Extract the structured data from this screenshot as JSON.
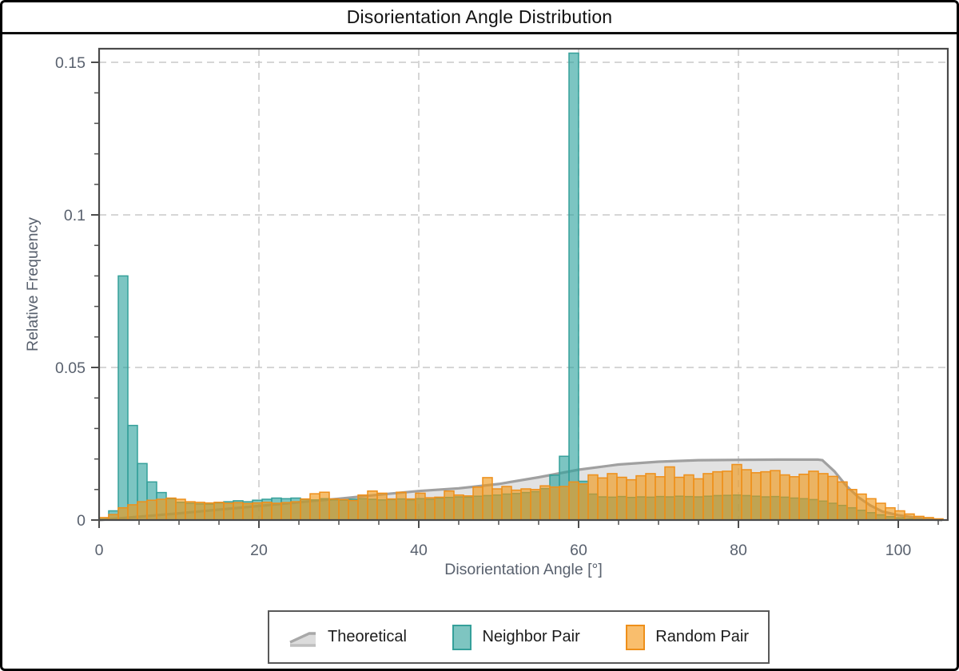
{
  "window": {
    "title": "Disorientation Angle Distribution"
  },
  "axes": {
    "x": {
      "label": "Disorientation Angle [°]",
      "ticks": [
        0,
        20,
        40,
        60,
        80,
        100
      ],
      "minor_step": 5,
      "minor_max": 105,
      "range": [
        0,
        106.2
      ],
      "grid": [
        20,
        40,
        60,
        80,
        100
      ]
    },
    "y": {
      "label": "Relative Frequency",
      "ticks": [
        0,
        0.05,
        0.1,
        0.15
      ],
      "tick_labels": [
        "0",
        "0.05",
        "0.1",
        "0.15"
      ],
      "minor_step": 0.01,
      "range": [
        0,
        0.1545
      ],
      "grid": [
        0.05,
        0.1,
        0.15
      ]
    }
  },
  "legend": {
    "items": [
      {
        "label": "Theoretical",
        "swatch": "area",
        "fill": "#d9d9d9",
        "stroke": "#a3a3a3"
      },
      {
        "label": "Neighbor Pair",
        "swatch": "bar",
        "fill": "#7ec5c1",
        "stroke": "#35a09a"
      },
      {
        "label": "Random Pair",
        "swatch": "bar",
        "fill": "#f9be6d",
        "stroke": "#ee8f1a"
      }
    ]
  },
  "colors": {
    "teal_fill": "rgba(44,161,156,0.62)",
    "teal_stroke": "#35a09a",
    "orange_fill": "rgba(240,150,20,0.62)",
    "orange_stroke": "#ee8f1a",
    "theoretical_fill": "rgba(190,190,190,0.45)",
    "theoretical_stroke": "#a0a0a0",
    "grid": "#c8c8c8",
    "frame": "#4a4a4a",
    "tick": "#4d4d4d",
    "tick_text": "#59616e"
  },
  "chart_data": {
    "type": "bar",
    "title": "Disorientation Angle Distribution",
    "xlabel": "Disorientation Angle [°]",
    "ylabel": "Relative Frequency",
    "xlim": [
      0,
      106.2
    ],
    "ylim": [
      0,
      0.1545
    ],
    "grid": "dashed, at x=20..100 step 20 and y=0.05/0.10/0.15",
    "legend_position": "bottom-center, boxed",
    "bin_width": 1.2,
    "bin_start": 0,
    "series": [
      {
        "name": "Neighbor Pair",
        "values": [
          0.0003,
          0.003,
          0.08,
          0.031,
          0.0185,
          0.0125,
          0.009,
          0.007,
          0.0058,
          0.0055,
          0.0053,
          0.0052,
          0.0056,
          0.006,
          0.0063,
          0.006,
          0.0065,
          0.0068,
          0.0072,
          0.007,
          0.0072,
          0.0068,
          0.0066,
          0.007,
          0.0066,
          0.0065,
          0.0068,
          0.007,
          0.0068,
          0.0066,
          0.0067,
          0.0069,
          0.0066,
          0.007,
          0.0068,
          0.0072,
          0.0074,
          0.0076,
          0.0075,
          0.0078,
          0.008,
          0.0082,
          0.0085,
          0.0087,
          0.009,
          0.0093,
          0.0103,
          0.0147,
          0.0209,
          0.153,
          0.0127,
          0.0085,
          0.0076,
          0.0075,
          0.0077,
          0.0074,
          0.0076,
          0.0075,
          0.0077,
          0.0076,
          0.0078,
          0.0077,
          0.0076,
          0.0078,
          0.008,
          0.0081,
          0.0082,
          0.008,
          0.0078,
          0.0076,
          0.0077,
          0.0075,
          0.0072,
          0.007,
          0.0067,
          0.0062,
          0.0055,
          0.0048,
          0.004,
          0.0032,
          0.0024,
          0.0017,
          0.0011,
          0.0007,
          0.0004,
          0.0002,
          0.0001,
          0.0
        ]
      },
      {
        "name": "Random Pair",
        "values": [
          0.0008,
          0.0018,
          0.004,
          0.005,
          0.006,
          0.0065,
          0.0068,
          0.0072,
          0.0068,
          0.006,
          0.0058,
          0.0056,
          0.0058,
          0.0055,
          0.0057,
          0.0054,
          0.0056,
          0.0058,
          0.0055,
          0.0057,
          0.006,
          0.0069,
          0.0086,
          0.0091,
          0.0069,
          0.0067,
          0.0064,
          0.0082,
          0.0095,
          0.0088,
          0.0069,
          0.0091,
          0.0069,
          0.0088,
          0.0073,
          0.0075,
          0.0095,
          0.0082,
          0.0079,
          0.0108,
          0.0139,
          0.0102,
          0.011,
          0.0098,
          0.0102,
          0.01,
          0.0112,
          0.0108,
          0.011,
          0.0125,
          0.0118,
          0.0148,
          0.0138,
          0.0152,
          0.014,
          0.0132,
          0.0145,
          0.0152,
          0.0142,
          0.0174,
          0.014,
          0.0148,
          0.0135,
          0.0152,
          0.0158,
          0.016,
          0.0182,
          0.0165,
          0.0155,
          0.0158,
          0.0162,
          0.0148,
          0.0142,
          0.015,
          0.016,
          0.0152,
          0.0143,
          0.0125,
          0.01,
          0.0085,
          0.007,
          0.0055,
          0.004,
          0.003,
          0.002,
          0.0012,
          0.0008,
          0.0004
        ]
      }
    ],
    "theoretical": {
      "name": "Theoretical",
      "x": [
        0,
        5,
        10,
        15,
        20,
        25,
        30,
        35,
        40,
        45,
        50,
        55,
        60,
        65,
        70,
        75,
        80,
        85,
        90,
        90.5,
        92,
        93.5,
        95,
        96.5,
        98,
        100,
        102,
        104,
        105.5
      ],
      "y": [
        0,
        0.0011,
        0.0022,
        0.0034,
        0.0046,
        0.0058,
        0.007,
        0.0083,
        0.0095,
        0.0104,
        0.0118,
        0.014,
        0.0165,
        0.0182,
        0.0191,
        0.0196,
        0.0197,
        0.0198,
        0.0198,
        0.0196,
        0.016,
        0.0112,
        0.0075,
        0.0048,
        0.0028,
        0.0016,
        0.0008,
        0.0002,
        0
      ]
    }
  }
}
